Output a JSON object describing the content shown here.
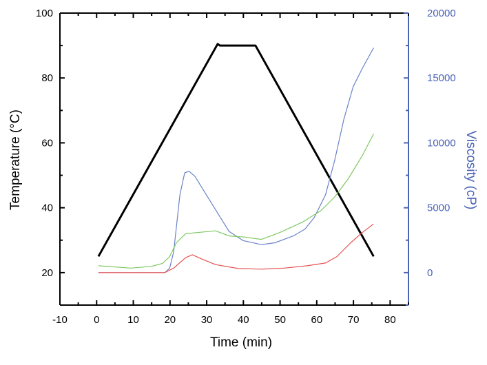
{
  "chart_data": {
    "type": "line",
    "title": "",
    "xlabel": "Time (min)",
    "ylabel": "Temperature (°C)",
    "y2label": "Viscosity (cP)",
    "xlim": [
      -10,
      85
    ],
    "ylim": [
      10,
      100
    ],
    "y2lim": [
      -2500,
      20000
    ],
    "xticks": [
      -10,
      0,
      10,
      20,
      30,
      40,
      50,
      60,
      70,
      80
    ],
    "yticks": [
      20,
      40,
      60,
      80,
      100
    ],
    "y2ticks": [
      0,
      5000,
      10000,
      15000,
      20000
    ],
    "grid": false,
    "colors": {
      "axis": "#000000",
      "axis2": "#4a63b5"
    },
    "series": [
      {
        "axis": "left",
        "color": "#000000",
        "points": [
          [
            0.5,
            25
          ],
          [
            33,
            90.5
          ],
          [
            33.6,
            90
          ],
          [
            43.3,
            90
          ],
          [
            75.5,
            25
          ]
        ]
      },
      {
        "axis": "right",
        "color": "#6a82c8",
        "points": [
          [
            0.5,
            0
          ],
          [
            18.6,
            0
          ],
          [
            19.9,
            350
          ],
          [
            21,
            1590
          ],
          [
            22.7,
            6000
          ],
          [
            24,
            7690
          ],
          [
            25.2,
            7810
          ],
          [
            26.8,
            7420
          ],
          [
            29.9,
            6000
          ],
          [
            33,
            4590
          ],
          [
            36.1,
            3180
          ],
          [
            39.9,
            2470
          ],
          [
            44.9,
            2160
          ],
          [
            48.6,
            2300
          ],
          [
            53.6,
            2830
          ],
          [
            56.8,
            3360
          ],
          [
            59.3,
            4240
          ],
          [
            62.4,
            6000
          ],
          [
            64.9,
            8660
          ],
          [
            67.4,
            11840
          ],
          [
            69.9,
            14310
          ],
          [
            72.4,
            15730
          ],
          [
            75.5,
            17320
          ]
        ]
      },
      {
        "axis": "right",
        "color": "#7cc860",
        "points": [
          [
            0.5,
            530
          ],
          [
            9.25,
            350
          ],
          [
            14.9,
            480
          ],
          [
            18,
            710
          ],
          [
            19.9,
            1240
          ],
          [
            21.75,
            2300
          ],
          [
            24.25,
            3000
          ],
          [
            27.4,
            3090
          ],
          [
            32.4,
            3220
          ],
          [
            36.1,
            2830
          ],
          [
            40.5,
            2740
          ],
          [
            44.9,
            2560
          ],
          [
            49.9,
            3090
          ],
          [
            56.1,
            3890
          ],
          [
            61.1,
            4770
          ],
          [
            64.9,
            5830
          ],
          [
            68.6,
            7240
          ],
          [
            72.4,
            9010
          ],
          [
            75.5,
            10690
          ]
        ]
      },
      {
        "axis": "right",
        "color": "#e85050",
        "points": [
          [
            0.5,
            0
          ],
          [
            18.6,
            0
          ],
          [
            21,
            350
          ],
          [
            24.25,
            1150
          ],
          [
            26.1,
            1380
          ],
          [
            28.6,
            1060
          ],
          [
            32.4,
            620
          ],
          [
            38.6,
            320
          ],
          [
            44.9,
            270
          ],
          [
            51.1,
            350
          ],
          [
            57.4,
            530
          ],
          [
            62.4,
            740
          ],
          [
            65.5,
            1240
          ],
          [
            69.25,
            2300
          ],
          [
            72.4,
            3090
          ],
          [
            75.5,
            3750
          ]
        ]
      }
    ]
  }
}
